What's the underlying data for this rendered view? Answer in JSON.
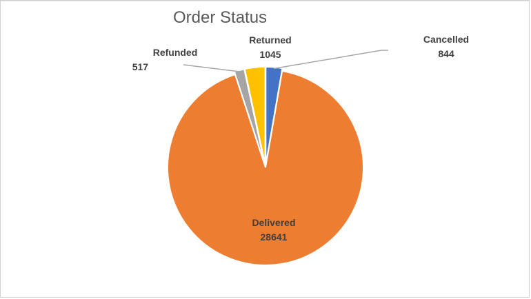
{
  "chart_data": {
    "type": "pie",
    "title": "Order Status",
    "slices": [
      {
        "label": "Cancelled",
        "value": 844,
        "color": "#4472C4"
      },
      {
        "label": "Delivered",
        "value": 28641,
        "color": "#ED7D31"
      },
      {
        "label": "Refunded",
        "value": 517,
        "color": "#A5A5A5"
      },
      {
        "label": "Returned",
        "value": 1045,
        "color": "#FFC000"
      }
    ],
    "legend": "none",
    "data_labels": "category-and-value"
  }
}
